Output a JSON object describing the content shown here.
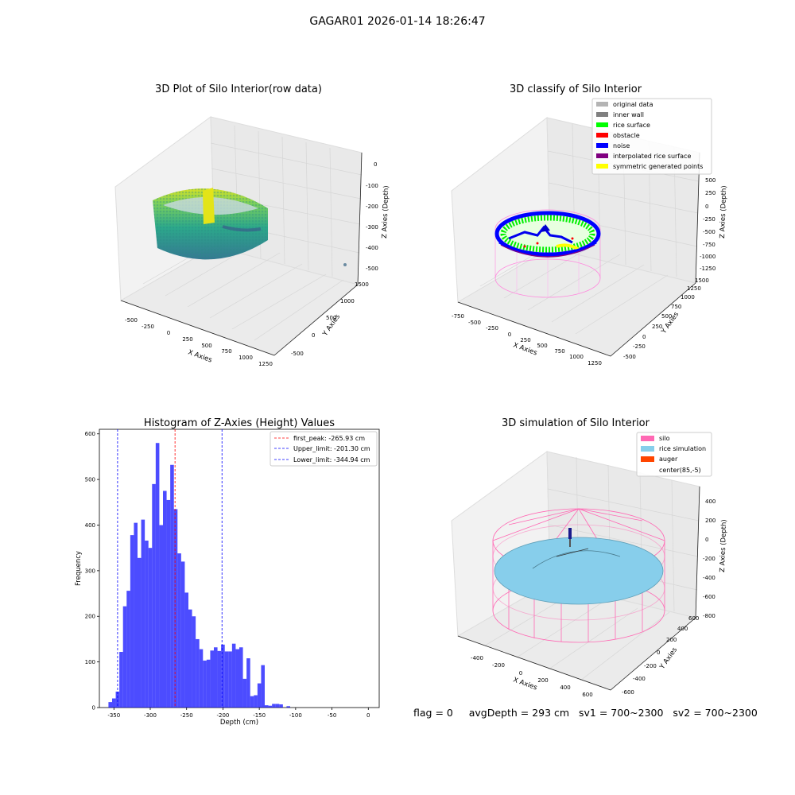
{
  "suptitle": "GAGAR01 2026-01-14 18:26:47",
  "panels": {
    "raw": {
      "title": "3D Plot of Silo Interior(row data)",
      "xlabel": "X Axies",
      "ylabel": "Y Axies",
      "zlabel": "Z Axies (Depth)",
      "xticks": [
        "-500",
        "-250",
        "0",
        "250",
        "500",
        "750",
        "1000",
        "1250"
      ],
      "yticks": [
        "-500",
        "0",
        "500",
        "1000",
        "1500"
      ],
      "zticks": [
        "0",
        "-100",
        "-200",
        "-300",
        "-400",
        "-500"
      ]
    },
    "classify": {
      "title": "3D classify of Silo Interior",
      "xlabel": "X Axies",
      "ylabel": "Y Axies",
      "zlabel": "Z Axies (Depth)",
      "xticks": [
        "-750",
        "-500",
        "-250",
        "0",
        "250",
        "500",
        "750",
        "1000",
        "1250"
      ],
      "yticks": [
        "-500",
        "-250",
        "0",
        "250",
        "500",
        "750",
        "1000",
        "1250",
        "1500"
      ],
      "zticks": [
        "500",
        "250",
        "0",
        "-250",
        "-500",
        "-750",
        "-1000",
        "-1250"
      ],
      "legend": [
        {
          "label": "original data",
          "color": "#b4b4b4"
        },
        {
          "label": "inner wall",
          "color": "#808080"
        },
        {
          "label": "rice surface",
          "color": "#00ff00"
        },
        {
          "label": "obstacle",
          "color": "#ff0000"
        },
        {
          "label": "noise",
          "color": "#0000ff"
        },
        {
          "label": "interpolated rice surface",
          "color": "#800080"
        },
        {
          "label": "symmetric generated points",
          "color": "#ffff00"
        }
      ]
    },
    "simulation": {
      "title": "3D simulation of Silo Interior",
      "xlabel": "X Axies",
      "ylabel": "Y Axies",
      "zlabel": "Z Axies (Depth)",
      "xticks": [
        "-400",
        "-200",
        "0",
        "200",
        "400",
        "600"
      ],
      "yticks": [
        "-600",
        "-400",
        "-200",
        "0",
        "200",
        "400",
        "600"
      ],
      "zticks": [
        "400",
        "200",
        "0",
        "-200",
        "-400",
        "-600",
        "-800"
      ],
      "legend": [
        {
          "label": "silo",
          "color": "#ff69b4"
        },
        {
          "label": "rice simulation",
          "color": "#87ceeb"
        },
        {
          "label": "auger",
          "color": "#ff4500"
        },
        {
          "label": "center(85,-5)",
          "color": ""
        }
      ]
    }
  },
  "status": {
    "flag": "flag = 0",
    "avg_depth": "avgDepth = 293 cm",
    "sv1": "sv1 = 700~2300",
    "sv2": "sv2 = 700~2300"
  },
  "chart_data": {
    "type": "bar",
    "title": "Histogram of Z-Axies (Height) Values",
    "xlabel": "Depth (cm)",
    "ylabel": "Frequency",
    "xlim": [
      -370,
      15
    ],
    "ylim": [
      0,
      610
    ],
    "xticks": [
      -350,
      -300,
      -250,
      -200,
      -150,
      -100,
      -50,
      0
    ],
    "yticks": [
      0,
      100,
      200,
      300,
      400,
      500,
      600
    ],
    "bin_start": -357.5,
    "bin_width": 5,
    "values": [
      12,
      20,
      35,
      122,
      222,
      256,
      378,
      405,
      328,
      412,
      366,
      350,
      490,
      580,
      400,
      475,
      455,
      532,
      435,
      338,
      320,
      252,
      215,
      200,
      150,
      128,
      103,
      105,
      125,
      132,
      124,
      138,
      123,
      123,
      140,
      128,
      132,
      63,
      108,
      25,
      27,
      53,
      93,
      5,
      4,
      8,
      8,
      7,
      0,
      3
    ],
    "color": "#0000ff",
    "lines": [
      {
        "label": "first_peak: -265.93 cm",
        "x": -265.93,
        "color": "#ff0000"
      },
      {
        "label": "Upper_limit: -201.30 cm",
        "x": -201.3,
        "color": "#0000ff"
      },
      {
        "label": "Lower_limit: -344.94 cm",
        "x": -344.94,
        "color": "#0000ff"
      }
    ],
    "legend_position": "top-right",
    "grid": false
  }
}
